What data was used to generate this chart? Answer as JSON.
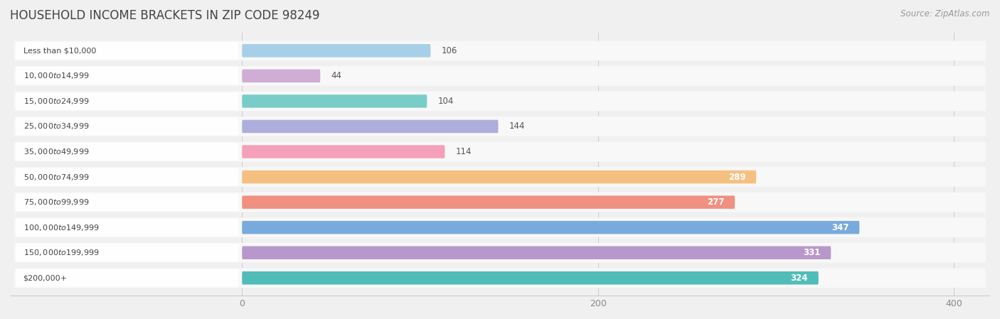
{
  "title": "HOUSEHOLD INCOME BRACKETS IN ZIP CODE 98249",
  "source": "Source: ZipAtlas.com",
  "categories": [
    "Less than $10,000",
    "$10,000 to $14,999",
    "$15,000 to $24,999",
    "$25,000 to $34,999",
    "$35,000 to $49,999",
    "$50,000 to $74,999",
    "$75,000 to $99,999",
    "$100,000 to $149,999",
    "$150,000 to $199,999",
    "$200,000+"
  ],
  "values": [
    106,
    44,
    104,
    144,
    114,
    289,
    277,
    347,
    331,
    324
  ],
  "bar_colors": [
    "#a8cfe8",
    "#cfadd4",
    "#79cdc8",
    "#aeaedd",
    "#f5a0ba",
    "#f5c080",
    "#f09080",
    "#78aadc",
    "#b898cc",
    "#50bdb8"
  ],
  "label_colors_inside": [
    "#555555",
    "#555555",
    "#555555",
    "#555555",
    "#555555",
    "#ffffff",
    "#ffffff",
    "#ffffff",
    "#ffffff",
    "#ffffff"
  ],
  "xlim_data": [
    0,
    400
  ],
  "xticks": [
    0,
    200,
    400
  ],
  "background_color": "#f0f0f0",
  "row_bg_color": "#e8e8e8",
  "bar_bg_color": "#f8f8f8",
  "title_fontsize": 12,
  "source_fontsize": 8.5,
  "value_fontsize": 8.5,
  "category_fontsize": 8.0
}
